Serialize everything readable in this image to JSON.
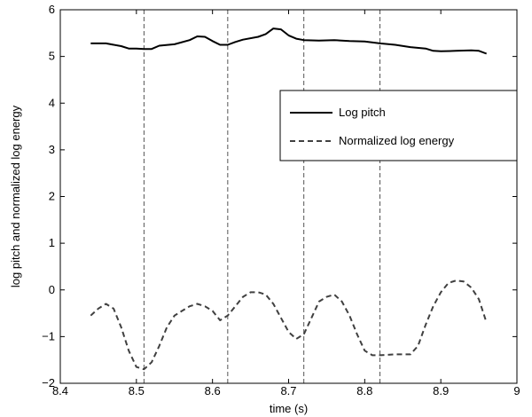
{
  "chart_data": {
    "type": "line",
    "title": "",
    "xlabel": "time (s)",
    "ylabel": "log pitch and normalized log energy",
    "xlim": [
      8.4,
      9.0
    ],
    "ylim": [
      -2,
      6
    ],
    "xticks": [
      8.4,
      8.5,
      8.6,
      8.7,
      8.8,
      8.9,
      9.0
    ],
    "xtick_labels": [
      "8.4",
      "8.5",
      "8.6",
      "8.7",
      "8.8",
      "8.9",
      "9"
    ],
    "yticks": [
      -2,
      -1,
      0,
      1,
      2,
      3,
      4,
      5,
      6
    ],
    "ytick_labels": [
      "−2",
      "−1",
      "0",
      "1",
      "2",
      "3",
      "4",
      "5",
      "6"
    ],
    "grid": false,
    "legend_position": "upper-right",
    "vertical_markers": [
      8.51,
      8.62,
      8.72,
      8.82
    ],
    "series": [
      {
        "name": "Log pitch",
        "style": "solid",
        "color": "#000000",
        "x": [
          8.44,
          8.46,
          8.48,
          8.49,
          8.5,
          8.51,
          8.52,
          8.53,
          8.55,
          8.57,
          8.58,
          8.59,
          8.6,
          8.61,
          8.62,
          8.63,
          8.64,
          8.66,
          8.67,
          8.68,
          8.69,
          8.7,
          8.71,
          8.72,
          8.74,
          8.76,
          8.78,
          8.8,
          8.82,
          8.84,
          8.86,
          8.88,
          8.89,
          8.9,
          8.92,
          8.94,
          8.95,
          8.96
        ],
        "y": [
          5.28,
          5.28,
          5.22,
          5.17,
          5.17,
          5.16,
          5.16,
          5.23,
          5.26,
          5.35,
          5.43,
          5.42,
          5.33,
          5.25,
          5.25,
          5.31,
          5.36,
          5.42,
          5.48,
          5.6,
          5.58,
          5.45,
          5.38,
          5.35,
          5.34,
          5.35,
          5.33,
          5.32,
          5.28,
          5.25,
          5.2,
          5.17,
          5.12,
          5.11,
          5.12,
          5.13,
          5.12,
          5.06
        ]
      },
      {
        "name": "Normalized log energy",
        "style": "dashed",
        "color": "#000000",
        "x": [
          8.44,
          8.45,
          8.46,
          8.47,
          8.48,
          8.49,
          8.5,
          8.51,
          8.52,
          8.53,
          8.54,
          8.55,
          8.56,
          8.57,
          8.58,
          8.59,
          8.6,
          8.61,
          8.62,
          8.63,
          8.64,
          8.65,
          8.66,
          8.67,
          8.68,
          8.69,
          8.7,
          8.71,
          8.72,
          8.73,
          8.74,
          8.75,
          8.76,
          8.77,
          8.78,
          8.79,
          8.8,
          8.81,
          8.82,
          8.84,
          8.86,
          8.87,
          8.88,
          8.89,
          8.9,
          8.91,
          8.92,
          8.93,
          8.94,
          8.95,
          8.96
        ],
        "y": [
          -0.55,
          -0.4,
          -0.3,
          -0.4,
          -0.8,
          -1.3,
          -1.65,
          -1.7,
          -1.55,
          -1.2,
          -0.8,
          -0.55,
          -0.45,
          -0.35,
          -0.3,
          -0.35,
          -0.45,
          -0.65,
          -0.55,
          -0.35,
          -0.15,
          -0.05,
          -0.05,
          -0.1,
          -0.3,
          -0.6,
          -0.9,
          -1.05,
          -0.95,
          -0.6,
          -0.25,
          -0.15,
          -0.1,
          -0.25,
          -0.55,
          -0.95,
          -1.3,
          -1.4,
          -1.4,
          -1.38,
          -1.38,
          -1.2,
          -0.75,
          -0.35,
          -0.05,
          0.15,
          0.2,
          0.18,
          0.05,
          -0.2,
          -0.7
        ]
      }
    ]
  }
}
